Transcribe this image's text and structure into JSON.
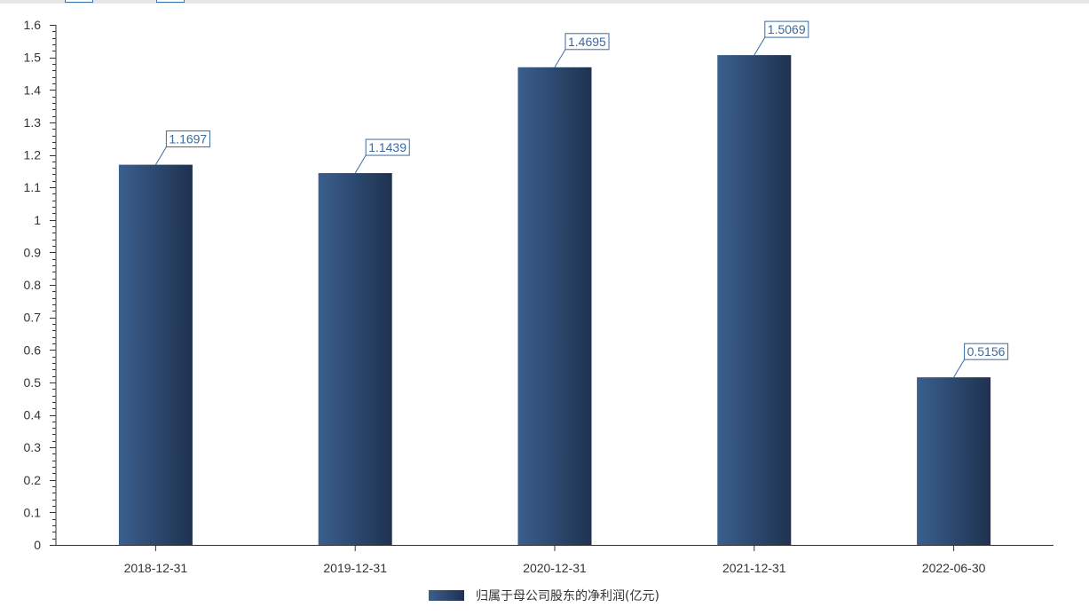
{
  "chart_data": {
    "type": "bar",
    "categories": [
      "2018-12-31",
      "2019-12-31",
      "2020-12-31",
      "2021-12-31",
      "2022-06-30"
    ],
    "series": [
      {
        "name": "归属于母公司股东的净利润(亿元)",
        "values": [
          1.1697,
          1.1439,
          1.4695,
          1.5069,
          0.5156
        ]
      }
    ],
    "data_labels": [
      "1.1697",
      "1.1439",
      "1.4695",
      "1.5069",
      "0.5156"
    ],
    "ylim": [
      0,
      1.6
    ],
    "yticks": [
      0,
      0.1,
      0.2,
      0.3,
      0.4,
      0.5,
      0.6,
      0.7,
      0.8,
      0.9,
      1,
      1.1,
      1.2,
      1.3,
      1.4,
      1.5,
      1.6
    ],
    "ytick_labels": [
      "0",
      "0.1",
      "0.2",
      "0.3",
      "0.4",
      "0.5",
      "0.6",
      "0.7",
      "0.8",
      "0.9",
      "1",
      "1.1",
      "1.2",
      "1.3",
      "1.4",
      "1.5",
      "1.6"
    ],
    "grid": false,
    "legend_position": "bottom-center",
    "colors": {
      "bar_light": "#3a5f8e",
      "bar_dark": "#1f324f",
      "label": "#3a6aa0",
      "axis": "#333333"
    }
  }
}
